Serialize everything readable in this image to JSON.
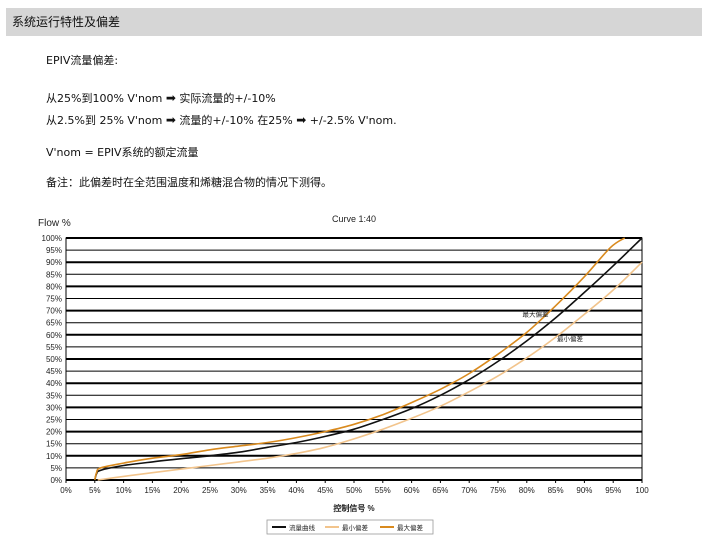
{
  "header": {
    "title": "系统运行特性及偏差"
  },
  "text": {
    "epiv_label": "EPIV流量偏差:",
    "line1_pre": "从25%到100% V'nom",
    "line1_post": "实际流量的+/-10%",
    "line2_pre": "从2.5%到 25% V'nom",
    "line2_mid": "流量的+/-10% 在25%",
    "line2_post": "+/-2.5% V'nom.",
    "vnom_def": "V'nom =  EPIV系统的额定流量",
    "note": "备注：此偏差时在全范围温度和烯糖混合物的情况下测得。"
  },
  "icons": {
    "arrow": "right-arrow-icon"
  },
  "colors": {
    "flow_curve": "#111111",
    "min_deviation": "#f2c48c",
    "max_deviation": "#d98a1e",
    "header_bg": "#d6d6d6"
  },
  "chart_data": {
    "type": "line",
    "title": "Curve 1:40",
    "ylabel": "Flow %",
    "xlabel": "控制信号 %",
    "xlim": [
      0,
      100
    ],
    "ylim": [
      0,
      100
    ],
    "xticks": [
      0,
      5,
      10,
      15,
      20,
      25,
      30,
      35,
      40,
      45,
      50,
      55,
      60,
      65,
      70,
      75,
      80,
      85,
      90,
      95,
      100
    ],
    "xtick_labels": [
      "0%",
      "5%",
      "10%",
      "15%",
      "20%",
      "25%",
      "30%",
      "35%",
      "40%",
      "45%",
      "50%",
      "55%",
      "60%",
      "65%",
      "70%",
      "75%",
      "80%",
      "85%",
      "90%",
      "95%",
      "100"
    ],
    "yticks": [
      0,
      5,
      10,
      15,
      20,
      25,
      30,
      35,
      40,
      45,
      50,
      55,
      60,
      65,
      70,
      75,
      80,
      85,
      90,
      95,
      100
    ],
    "ytick_labels": [
      "0%",
      "5%",
      "10%",
      "15%",
      "20%",
      "25%",
      "30%",
      "35%",
      "40%",
      "45%",
      "50%",
      "55%",
      "60%",
      "65%",
      "70%",
      "75%",
      "80%",
      "85%",
      "90%",
      "95%",
      "100%"
    ],
    "grid": true,
    "legend_position": "bottom",
    "series": [
      {
        "name": "流量曲线",
        "x": [
          5,
          5.3,
          6,
          10,
          15,
          20,
          25,
          30,
          35,
          40,
          45,
          50,
          55,
          60,
          65,
          70,
          75,
          80,
          85,
          90,
          95,
          100
        ],
        "y": [
          0,
          2.5,
          4,
          6,
          7.5,
          8.8,
          10,
          11.5,
          13.5,
          15.5,
          18,
          21,
          25,
          29.5,
          35,
          41.5,
          49,
          57.5,
          67,
          77.5,
          88.5,
          100
        ]
      },
      {
        "name": "最小偏差",
        "x": [
          5.5,
          10,
          15,
          20,
          25,
          30,
          35,
          40,
          45,
          50,
          55,
          60,
          65,
          70,
          75,
          80,
          85,
          90,
          95,
          100
        ],
        "y": [
          0,
          1.5,
          3,
          4.5,
          6,
          7.5,
          9,
          11,
          13.5,
          17,
          21,
          25.5,
          30.5,
          36.5,
          43,
          50.5,
          59,
          68.5,
          78.5,
          90
        ]
      },
      {
        "name": "最大偏差",
        "x": [
          5,
          5.3,
          6,
          10,
          15,
          20,
          25,
          30,
          35,
          40,
          45,
          50,
          55,
          60,
          65,
          70,
          75,
          80,
          85,
          90,
          94.5,
          97
        ],
        "y": [
          0,
          3,
          5,
          7,
          9,
          10.5,
          12.5,
          14,
          15.5,
          17.5,
          20,
          23,
          27,
          32,
          37.5,
          44,
          52,
          61,
          72,
          84,
          96,
          100
        ]
      }
    ],
    "annotations": [
      {
        "text": "最大偏差",
        "x": 81.5,
        "y": 67.5
      },
      {
        "text": "最小偏差",
        "x": 87.5,
        "y": 57.5
      }
    ]
  }
}
